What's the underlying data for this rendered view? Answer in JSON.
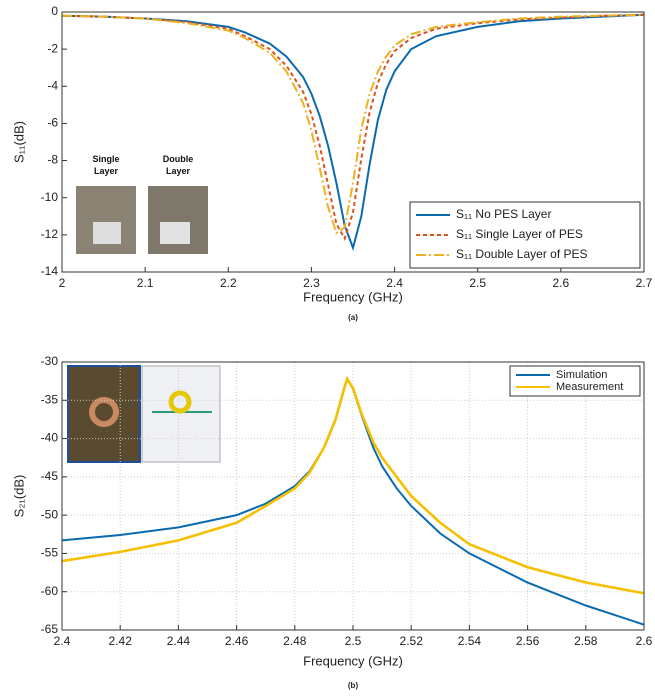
{
  "chart_data": [
    {
      "type": "line",
      "xlabel": "Frequency (GHz)",
      "ylabel": "S₁₁(dB)",
      "caption": "(a)",
      "x": [
        2.0,
        2.05,
        2.1,
        2.15,
        2.2,
        2.22,
        2.25,
        2.27,
        2.29,
        2.3,
        2.31,
        2.32,
        2.33,
        2.34,
        2.35,
        2.36,
        2.37,
        2.38,
        2.39,
        2.4,
        2.42,
        2.45,
        2.5,
        2.55,
        2.6,
        2.65,
        2.7
      ],
      "series": [
        {
          "name": "S₁₁ No PES Layer",
          "color": "#0a6ab0",
          "style": "solid",
          "values": [
            -0.2,
            -0.25,
            -0.35,
            -0.5,
            -0.8,
            -1.1,
            -1.7,
            -2.4,
            -3.5,
            -4.4,
            -5.6,
            -7.2,
            -9.2,
            -11.5,
            -12.7,
            -11.0,
            -8.2,
            -5.8,
            -4.2,
            -3.2,
            -2.0,
            -1.3,
            -0.8,
            -0.5,
            -0.35,
            -0.25,
            -0.15
          ]
        },
        {
          "name": "S₁₁ Single Layer of PES",
          "color": "#d9531e",
          "style": "dashed",
          "values": [
            -0.2,
            -0.25,
            -0.35,
            -0.55,
            -0.9,
            -1.3,
            -2.0,
            -2.9,
            -4.3,
            -5.5,
            -7.2,
            -9.3,
            -11.4,
            -12.2,
            -10.8,
            -7.9,
            -5.4,
            -3.8,
            -2.8,
            -2.1,
            -1.4,
            -0.9,
            -0.6,
            -0.4,
            -0.3,
            -0.2,
            -0.15
          ]
        },
        {
          "name": "S₁₁ Double Layer of PES",
          "color": "#edb120",
          "style": "dashdot",
          "values": [
            -0.2,
            -0.25,
            -0.35,
            -0.6,
            -1.0,
            -1.4,
            -2.2,
            -3.2,
            -4.9,
            -6.4,
            -8.4,
            -10.5,
            -11.9,
            -11.6,
            -9.2,
            -6.3,
            -4.4,
            -3.2,
            -2.4,
            -1.8,
            -1.2,
            -0.8,
            -0.55,
            -0.35,
            -0.25,
            -0.2,
            -0.15
          ]
        }
      ],
      "xlim": [
        2,
        2.7
      ],
      "ylim": [
        -14,
        0
      ],
      "xticks": [
        2,
        2.1,
        2.2,
        2.3,
        2.4,
        2.5,
        2.6,
        2.7
      ],
      "yticks": [
        -14,
        -12,
        -10,
        -8,
        -6,
        -4,
        -2,
        0
      ],
      "grid": false,
      "legend": "lower right",
      "annotations": [
        "Single Layer",
        "Double Layer"
      ]
    },
    {
      "type": "line",
      "xlabel": "Frequency (GHz)",
      "ylabel": "S₂₁(dB)",
      "caption": "(b)",
      "x": [
        2.4,
        2.42,
        2.44,
        2.46,
        2.47,
        2.48,
        2.485,
        2.49,
        2.494,
        2.497,
        2.498,
        2.5,
        2.503,
        2.507,
        2.51,
        2.515,
        2.52,
        2.53,
        2.54,
        2.56,
        2.58,
        2.6
      ],
      "series": [
        {
          "name": "Simulation",
          "color": "#0a6ab0",
          "style": "solid",
          "values": [
            -53.3,
            -52.6,
            -51.6,
            -50.0,
            -48.5,
            -46.2,
            -44.3,
            -41.2,
            -37.6,
            -33.5,
            -32.2,
            -33.5,
            -37.0,
            -41.2,
            -43.6,
            -46.5,
            -48.8,
            -52.4,
            -55.0,
            -58.8,
            -61.8,
            -64.3
          ]
        },
        {
          "name": "Measurement",
          "color": "#f5c000",
          "style": "solid",
          "values": [
            -56.0,
            -54.8,
            -53.3,
            -51.0,
            -48.8,
            -46.5,
            -44.5,
            -41.2,
            -37.5,
            -33.4,
            -32.2,
            -33.4,
            -36.8,
            -40.5,
            -42.5,
            -45.0,
            -47.5,
            -51.0,
            -53.8,
            -56.8,
            -58.8,
            -60.2
          ]
        }
      ],
      "xlim": [
        2.4,
        2.6
      ],
      "ylim": [
        -65,
        -30
      ],
      "xticks": [
        2.4,
        2.42,
        2.44,
        2.46,
        2.48,
        2.5,
        2.52,
        2.54,
        2.56,
        2.58,
        2.6
      ],
      "yticks": [
        -65,
        -60,
        -55,
        -50,
        -45,
        -40,
        -35,
        -30
      ],
      "grid": true,
      "legend": "upper right"
    }
  ]
}
